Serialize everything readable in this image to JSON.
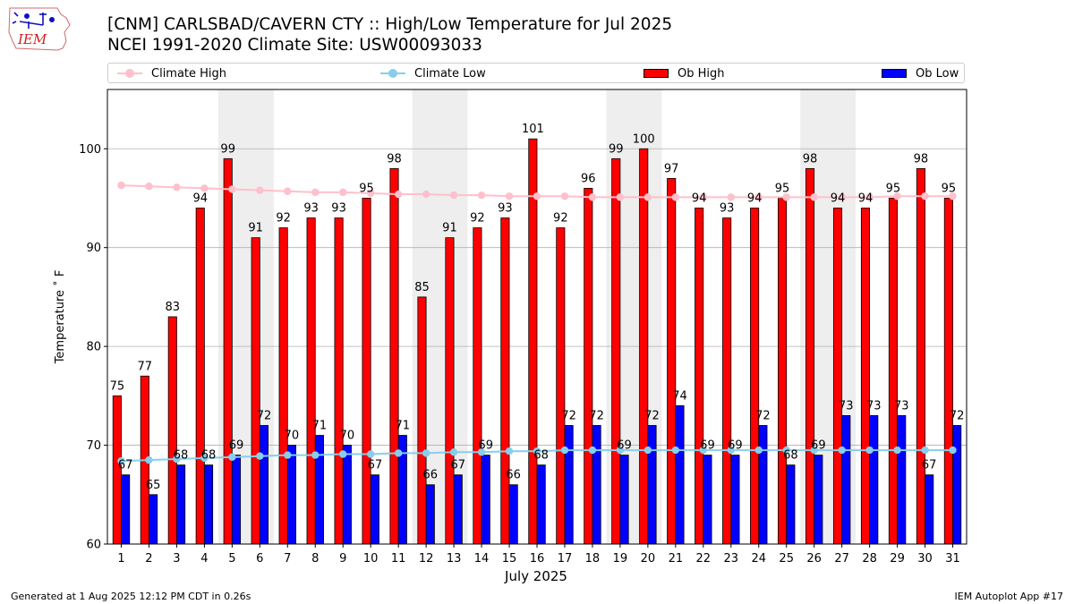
{
  "header": {
    "title": "[CNM] CARLSBAD/CAVERN CTY :: High/Low Temperature for Jul 2025",
    "subtitle": "NCEI 1991-2020 Climate Site: USW00093033",
    "logo_text": "IEM"
  },
  "footer": {
    "left": "Generated at 1 Aug 2025 12:12 PM CDT in 0.26s",
    "right": "IEM Autoplot App #17"
  },
  "colors": {
    "ob_high": "#ff0000",
    "ob_low": "#0000ff",
    "climate_high": "#ffc0cb",
    "climate_low": "#87ceeb",
    "weekend_band": "#eeeeee",
    "grid": "#b0b0b0"
  },
  "chart_data": {
    "type": "bar",
    "xlabel": "July 2025",
    "ylabel": "Temperature ˚ F",
    "ylim": [
      60,
      106
    ],
    "yticks": [
      60,
      70,
      80,
      90,
      100
    ],
    "grid": "horizontal",
    "legend_placement": "top",
    "x": [
      1,
      2,
      3,
      4,
      5,
      6,
      7,
      8,
      9,
      10,
      11,
      12,
      13,
      14,
      15,
      16,
      17,
      18,
      19,
      20,
      21,
      22,
      23,
      24,
      25,
      26,
      27,
      28,
      29,
      30,
      31
    ],
    "weekend_bands": [
      [
        5,
        6
      ],
      [
        12,
        13
      ],
      [
        19,
        20
      ],
      [
        26,
        27
      ]
    ],
    "series": [
      {
        "name": "Climate High",
        "kind": "line",
        "values": [
          96.3,
          96.2,
          96.1,
          96.0,
          95.9,
          95.8,
          95.7,
          95.6,
          95.6,
          95.5,
          95.4,
          95.4,
          95.3,
          95.3,
          95.2,
          95.2,
          95.2,
          95.1,
          95.1,
          95.1,
          95.1,
          95.1,
          95.1,
          95.1,
          95.1,
          95.1,
          95.1,
          95.1,
          95.2,
          95.2,
          95.2
        ]
      },
      {
        "name": "Climate Low",
        "kind": "line",
        "values": [
          68.4,
          68.5,
          68.6,
          68.7,
          68.8,
          68.9,
          69.0,
          69.0,
          69.1,
          69.1,
          69.2,
          69.2,
          69.3,
          69.3,
          69.4,
          69.4,
          69.5,
          69.5,
          69.5,
          69.5,
          69.5,
          69.5,
          69.5,
          69.5,
          69.5,
          69.5,
          69.5,
          69.5,
          69.5,
          69.5,
          69.5
        ]
      },
      {
        "name": "Ob High",
        "kind": "bar",
        "values": [
          75,
          77,
          83,
          94,
          99,
          91,
          92,
          93,
          93,
          95,
          98,
          85,
          91,
          92,
          93,
          101,
          92,
          96,
          99,
          100,
          97,
          94,
          93,
          94,
          95,
          98,
          94,
          94,
          95,
          98,
          95
        ]
      },
      {
        "name": "Ob Low",
        "kind": "bar",
        "values": [
          67,
          65,
          68,
          68,
          69,
          72,
          70,
          71,
          70,
          67,
          71,
          66,
          67,
          69,
          66,
          68,
          72,
          72,
          69,
          72,
          74,
          69,
          69,
          72,
          68,
          69,
          73,
          73,
          73,
          67,
          72
        ]
      }
    ]
  }
}
